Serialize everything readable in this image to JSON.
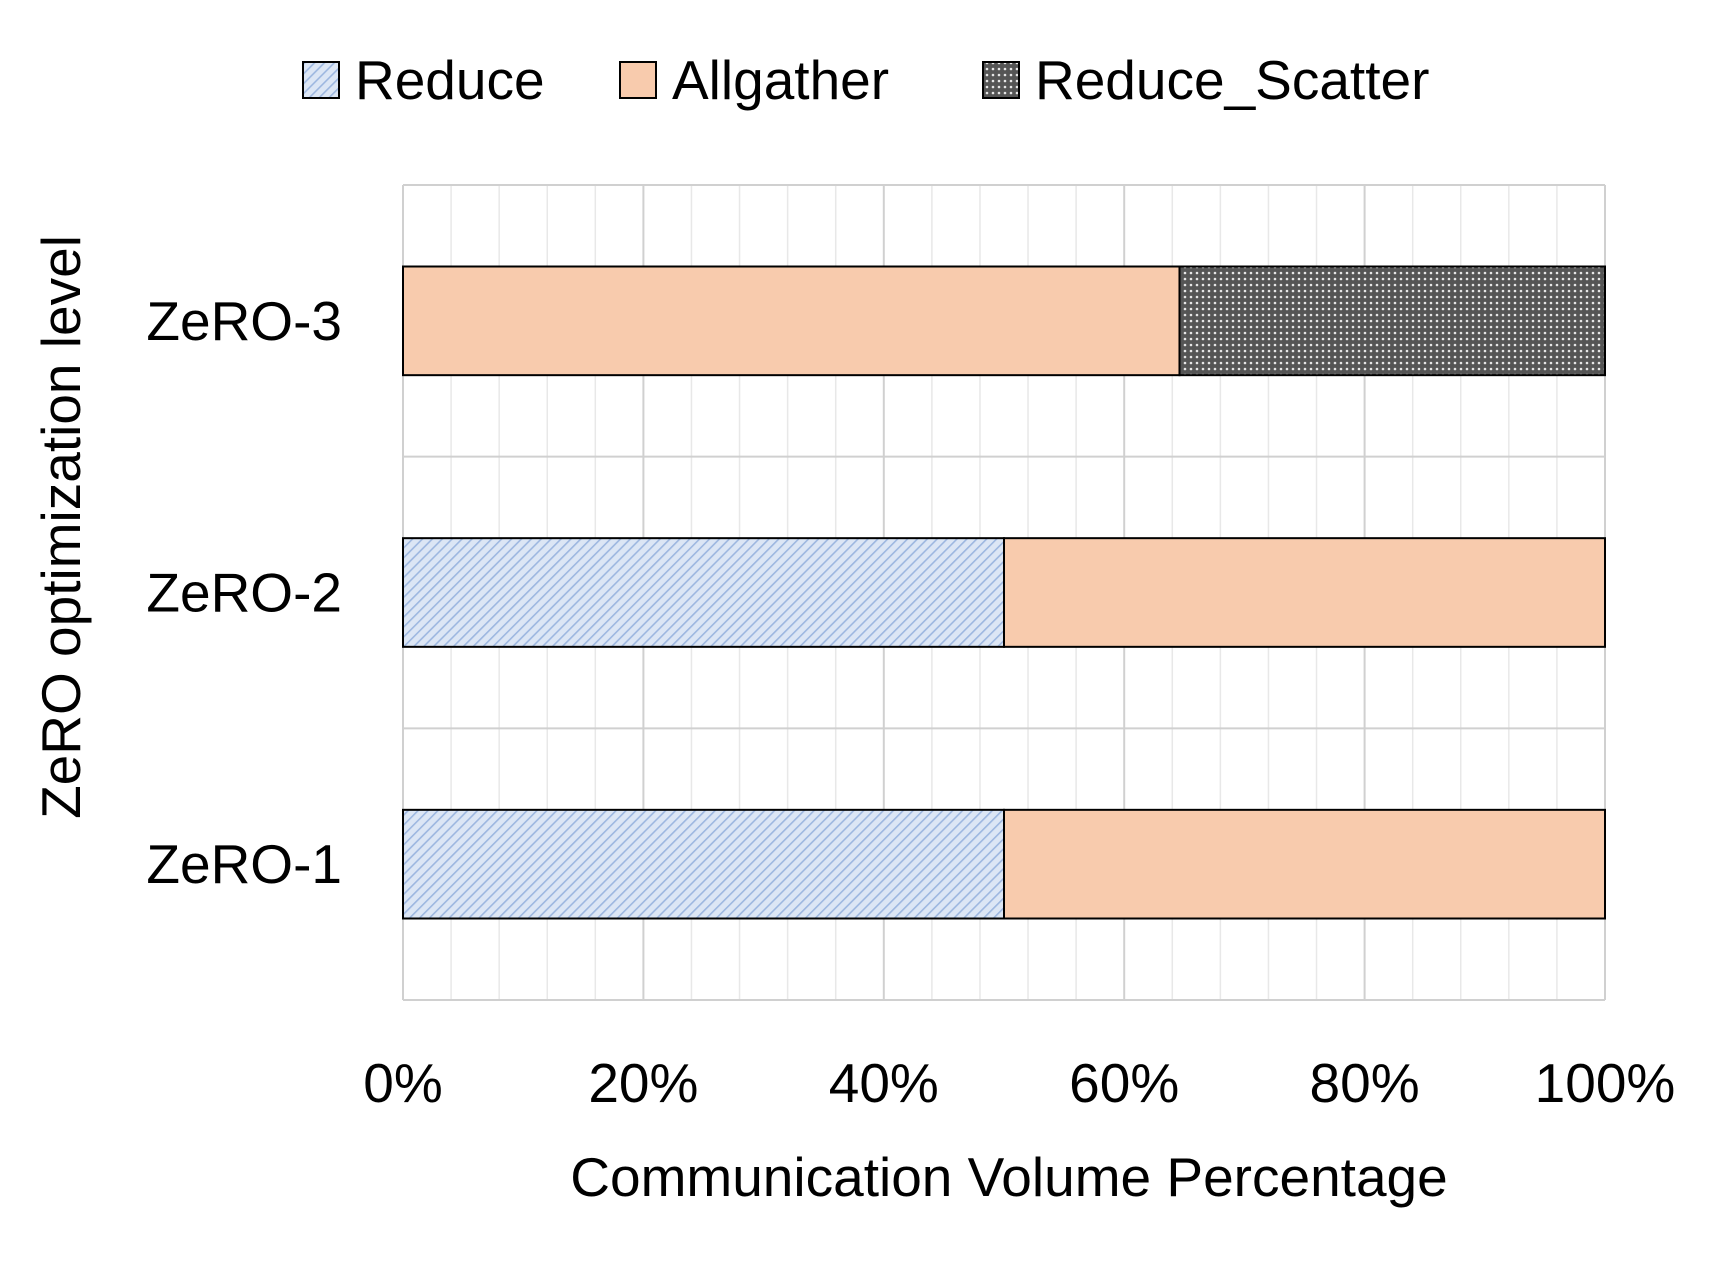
{
  "chart_data": {
    "type": "bar",
    "orientation": "horizontal",
    "stacked": "percent",
    "categories": [
      "ZeRO-3",
      "ZeRO-2",
      "ZeRO-1"
    ],
    "series": [
      {
        "name": "Reduce",
        "values": [
          0,
          50,
          50
        ],
        "color": "#b4c7e7",
        "pattern": "diagonal-hatch"
      },
      {
        "name": "Allgather",
        "values": [
          64.6,
          50,
          50
        ],
        "color": "#f8cbad",
        "pattern": "solid"
      },
      {
        "name": "Reduce_Scatter",
        "values": [
          35.4,
          0,
          0
        ],
        "color": "#595959",
        "pattern": "dotted"
      }
    ],
    "xlabel": "Communication Volume Percentage",
    "ylabel": "ZeRO optimization level",
    "xlim": [
      0,
      100
    ],
    "x_ticks": [
      "0%",
      "20%",
      "40%",
      "60%",
      "80%",
      "100%"
    ],
    "grid": true,
    "legend_position": "top"
  }
}
